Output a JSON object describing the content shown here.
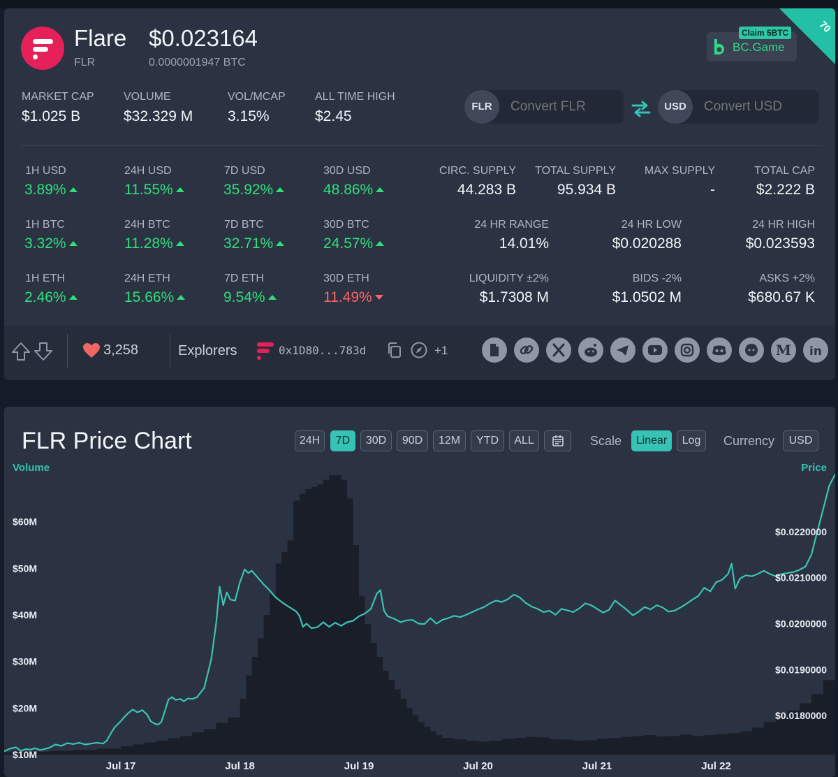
{
  "coin": {
    "name": "Flare",
    "ticker": "FLR",
    "price": "$0.023164",
    "price_btc": "0.0000001947 BTC"
  },
  "ad": {
    "claim": "Claim 5BTC",
    "brand": "BC.Game",
    "corner": "70"
  },
  "stats": [
    {
      "label": "MARKET CAP",
      "value": "$1.025 B"
    },
    {
      "label": "VOLUME",
      "value": "$32.329 M"
    },
    {
      "label": "VOL/MCAP",
      "value": "3.15%"
    },
    {
      "label": "ALL TIME HIGH",
      "value": "$2.45"
    }
  ],
  "converter": {
    "from_cur": "FLR",
    "from_placeholder": "Convert FLR",
    "to_cur": "USD",
    "to_placeholder": "Convert USD"
  },
  "changes": [
    {
      "label": "1H USD",
      "value": "3.89%",
      "dir": "up"
    },
    {
      "label": "24H USD",
      "value": "11.55%",
      "dir": "up"
    },
    {
      "label": "7D USD",
      "value": "35.92%",
      "dir": "up"
    },
    {
      "label": "30D USD",
      "value": "48.86%",
      "dir": "up"
    },
    {
      "label": "1H BTC",
      "value": "3.32%",
      "dir": "up"
    },
    {
      "label": "24H BTC",
      "value": "11.28%",
      "dir": "up"
    },
    {
      "label": "7D BTC",
      "value": "32.71%",
      "dir": "up"
    },
    {
      "label": "30D BTC",
      "value": "24.57%",
      "dir": "up"
    },
    {
      "label": "1H ETH",
      "value": "2.46%",
      "dir": "up"
    },
    {
      "label": "24H ETH",
      "value": "15.66%",
      "dir": "up"
    },
    {
      "label": "7D ETH",
      "value": "9.54%",
      "dir": "up"
    },
    {
      "label": "30D ETH",
      "value": "11.49%",
      "dir": "down"
    }
  ],
  "supply": [
    {
      "label": "CIRC. SUPPLY",
      "value": "44.283 B"
    },
    {
      "label": "TOTAL SUPPLY",
      "value": "95.934 B"
    },
    {
      "label": "MAX SUPPLY",
      "value": "-"
    },
    {
      "label": "TOTAL CAP",
      "value": "$2.222 B"
    }
  ],
  "range": [
    {
      "label": "24 HR RANGE",
      "value": "14.01%"
    },
    {
      "label": "24 HR LOW",
      "value": "$0.020288"
    },
    {
      "label": "24 HR HIGH",
      "value": "$0.023593"
    }
  ],
  "liquidity": [
    {
      "label": "LIQUIDITY ±2%",
      "value": "$1.7308 M"
    },
    {
      "label": "BIDS -2%",
      "value": "$1.0502 M"
    },
    {
      "label": "ASKS +2%",
      "value": "$680.67 K"
    }
  ],
  "toolbar": {
    "likes": "3,258",
    "explorers": "Explorers",
    "address": "0x1D80...783d",
    "more": "+1",
    "socials": [
      "document-icon",
      "link-icon",
      "x-icon",
      "reddit-icon",
      "telegram-icon",
      "youtube-icon",
      "instagram-icon",
      "discord-icon",
      "github-icon",
      "medium-icon",
      "linkedin-icon"
    ]
  },
  "chart_panel": {
    "title": "FLR Price Chart",
    "ranges": [
      "24H",
      "7D",
      "30D",
      "90D",
      "12M",
      "YTD",
      "ALL"
    ],
    "active_range": "7D",
    "scale_label": "Scale",
    "scales": [
      "Linear",
      "Log"
    ],
    "active_scale": "Linear",
    "currency_label": "Currency",
    "currency": "USD"
  },
  "colors": {
    "accent": "#36c2b4",
    "up": "#2fe07a",
    "down": "#ff6363",
    "card": "#2b3242",
    "logo": "#e62058"
  },
  "chart_data": {
    "type": "line",
    "title": "FLR Price Chart",
    "x_tick_labels": [
      "Jul 17",
      "Jul 18",
      "Jul 19",
      "Jul 20",
      "Jul 21",
      "Jul 22"
    ],
    "left_axis": {
      "title": "Volume",
      "ticks": [
        "$10M",
        "$20M",
        "$30M",
        "$40M",
        "$50M",
        "$60M"
      ],
      "ylim": [
        10,
        70
      ]
    },
    "right_axis": {
      "title": "Price",
      "ticks": [
        "$0.0180000",
        "$0.0190000",
        "$0.0200000",
        "$0.0210000",
        "$0.0220000"
      ],
      "ylim": [
        0.01715,
        0.02335
      ]
    },
    "x_range": [
      -0.98,
      6.0
    ],
    "price_series": [
      [
        -0.98,
        0.01722
      ],
      [
        -0.93,
        0.01728
      ],
      [
        -0.88,
        0.01731
      ],
      [
        -0.84,
        0.01723
      ],
      [
        -0.8,
        0.01727
      ],
      [
        -0.76,
        0.01726
      ],
      [
        -0.72,
        0.01729
      ],
      [
        -0.68,
        0.01725
      ],
      [
        -0.64,
        0.01727
      ],
      [
        -0.6,
        0.0173
      ],
      [
        -0.55,
        0.01737
      ],
      [
        -0.5,
        0.01734
      ],
      [
        -0.45,
        0.0174
      ],
      [
        -0.4,
        0.01738
      ],
      [
        -0.35,
        0.01741
      ],
      [
        -0.3,
        0.01737
      ],
      [
        -0.25,
        0.01739
      ],
      [
        -0.2,
        0.01741
      ],
      [
        -0.15,
        0.01739
      ],
      [
        -0.12,
        0.01745
      ],
      [
        -0.08,
        0.01763
      ],
      [
        -0.05,
        0.01775
      ],
      [
        0.0,
        0.01788
      ],
      [
        0.03,
        0.01797
      ],
      [
        0.06,
        0.01805
      ],
      [
        0.1,
        0.01813
      ],
      [
        0.14,
        0.01807
      ],
      [
        0.18,
        0.01812
      ],
      [
        0.22,
        0.01802
      ],
      [
        0.25,
        0.01788
      ],
      [
        0.28,
        0.01783
      ],
      [
        0.31,
        0.0178
      ],
      [
        0.34,
        0.01786
      ],
      [
        0.37,
        0.0181
      ],
      [
        0.4,
        0.01835
      ],
      [
        0.43,
        0.0184
      ],
      [
        0.46,
        0.01834
      ],
      [
        0.5,
        0.01836
      ],
      [
        0.53,
        0.01831
      ],
      [
        0.56,
        0.01837
      ],
      [
        0.6,
        0.01836
      ],
      [
        0.64,
        0.0184
      ],
      [
        0.7,
        0.0186
      ],
      [
        0.76,
        0.01923
      ],
      [
        0.8,
        0.02
      ],
      [
        0.83,
        0.0208
      ],
      [
        0.86,
        0.0204
      ],
      [
        0.89,
        0.02068
      ],
      [
        0.92,
        0.02052
      ],
      [
        0.96,
        0.0205
      ],
      [
        1.0,
        0.0209
      ],
      [
        1.04,
        0.02118
      ],
      [
        1.07,
        0.0211
      ],
      [
        1.1,
        0.02115
      ],
      [
        1.15,
        0.021
      ],
      [
        1.2,
        0.02085
      ],
      [
        1.25,
        0.02072
      ],
      [
        1.3,
        0.02057
      ],
      [
        1.36,
        0.02045
      ],
      [
        1.42,
        0.02035
      ],
      [
        1.47,
        0.02027
      ],
      [
        1.5,
        0.02017
      ],
      [
        1.53,
        0.01993
      ],
      [
        1.56,
        0.02
      ],
      [
        1.6,
        0.0199
      ],
      [
        1.65,
        0.01992
      ],
      [
        1.7,
        0.02003
      ],
      [
        1.75,
        0.01993
      ],
      [
        1.8,
        0.02002
      ],
      [
        1.85,
        0.01995
      ],
      [
        1.9,
        0.02003
      ],
      [
        1.95,
        0.02006
      ],
      [
        2.0,
        0.02016
      ],
      [
        2.05,
        0.02022
      ],
      [
        2.1,
        0.02032
      ],
      [
        2.15,
        0.02065
      ],
      [
        2.18,
        0.02073
      ],
      [
        2.21,
        0.02028
      ],
      [
        2.24,
        0.02016
      ],
      [
        2.3,
        0.0201
      ],
      [
        2.35,
        0.02003
      ],
      [
        2.4,
        0.02007
      ],
      [
        2.45,
        0.02008
      ],
      [
        2.5,
        0.02
      ],
      [
        2.55,
        0.01999
      ],
      [
        2.6,
        0.02012
      ],
      [
        2.65,
        0.02
      ],
      [
        2.7,
        0.02008
      ],
      [
        2.75,
        0.02012
      ],
      [
        2.8,
        0.02017
      ],
      [
        2.85,
        0.02014
      ],
      [
        2.9,
        0.02019
      ],
      [
        2.95,
        0.02025
      ],
      [
        3.0,
        0.02031
      ],
      [
        3.05,
        0.02036
      ],
      [
        3.1,
        0.02044
      ],
      [
        3.15,
        0.0205
      ],
      [
        3.2,
        0.02047
      ],
      [
        3.25,
        0.02053
      ],
      [
        3.3,
        0.02063
      ],
      [
        3.35,
        0.02057
      ],
      [
        3.4,
        0.02045
      ],
      [
        3.45,
        0.02037
      ],
      [
        3.5,
        0.02032
      ],
      [
        3.55,
        0.02025
      ],
      [
        3.6,
        0.02028
      ],
      [
        3.65,
        0.02019
      ],
      [
        3.7,
        0.02032
      ],
      [
        3.75,
        0.02029
      ],
      [
        3.8,
        0.02025
      ],
      [
        3.85,
        0.02033
      ],
      [
        3.9,
        0.02044
      ],
      [
        3.95,
        0.0204
      ],
      [
        4.0,
        0.02032
      ],
      [
        4.05,
        0.02024
      ],
      [
        4.1,
        0.0203
      ],
      [
        4.15,
        0.0205
      ],
      [
        4.2,
        0.0204
      ],
      [
        4.25,
        0.0203
      ],
      [
        4.3,
        0.02018
      ],
      [
        4.35,
        0.02026
      ],
      [
        4.4,
        0.02036
      ],
      [
        4.45,
        0.02031
      ],
      [
        4.5,
        0.0204
      ],
      [
        4.55,
        0.02035
      ],
      [
        4.6,
        0.02026
      ],
      [
        4.65,
        0.02028
      ],
      [
        4.7,
        0.02035
      ],
      [
        4.75,
        0.02043
      ],
      [
        4.8,
        0.02052
      ],
      [
        4.85,
        0.0206
      ],
      [
        4.9,
        0.02078
      ],
      [
        4.95,
        0.0207
      ],
      [
        5.0,
        0.0209
      ],
      [
        5.05,
        0.02095
      ],
      [
        5.1,
        0.02108
      ],
      [
        5.13,
        0.0213
      ],
      [
        5.16,
        0.02076
      ],
      [
        5.2,
        0.02098
      ],
      [
        5.25,
        0.02105
      ],
      [
        5.3,
        0.02103
      ],
      [
        5.35,
        0.02108
      ],
      [
        5.4,
        0.02115
      ],
      [
        5.45,
        0.02108
      ],
      [
        5.5,
        0.02103
      ],
      [
        5.55,
        0.02108
      ],
      [
        5.6,
        0.0211
      ],
      [
        5.65,
        0.02112
      ],
      [
        5.7,
        0.02117
      ],
      [
        5.75,
        0.02124
      ],
      [
        5.8,
        0.0215
      ],
      [
        5.85,
        0.022
      ],
      [
        5.9,
        0.0225
      ],
      [
        5.95,
        0.023
      ],
      [
        6.0,
        0.02325
      ]
    ],
    "volume_series": [
      [
        -0.98,
        10.5
      ],
      [
        -0.8,
        10.6
      ],
      [
        -0.6,
        10.8
      ],
      [
        -0.4,
        11.0
      ],
      [
        -0.2,
        11.3
      ],
      [
        0.0,
        11.8
      ],
      [
        0.1,
        12.2
      ],
      [
        0.2,
        12.6
      ],
      [
        0.3,
        13.0
      ],
      [
        0.4,
        13.5
      ],
      [
        0.5,
        14.0
      ],
      [
        0.6,
        14.8
      ],
      [
        0.7,
        15.5
      ],
      [
        0.8,
        16.8
      ],
      [
        0.9,
        18.0
      ],
      [
        1.0,
        22.0
      ],
      [
        1.05,
        27.0
      ],
      [
        1.1,
        31.0
      ],
      [
        1.15,
        35.0
      ],
      [
        1.2,
        40.0
      ],
      [
        1.25,
        44.5
      ],
      [
        1.3,
        51.0
      ],
      [
        1.35,
        53.5
      ],
      [
        1.4,
        56.0
      ],
      [
        1.45,
        64.5
      ],
      [
        1.5,
        66.0
      ],
      [
        1.55,
        67.0
      ],
      [
        1.6,
        67.5
      ],
      [
        1.65,
        68.0
      ],
      [
        1.7,
        69.0
      ],
      [
        1.75,
        70.0
      ],
      [
        1.8,
        70.0
      ],
      [
        1.85,
        69.0
      ],
      [
        1.9,
        65.0
      ],
      [
        1.95,
        55.0
      ],
      [
        2.0,
        44.0
      ],
      [
        2.05,
        38.0
      ],
      [
        2.1,
        34.0
      ],
      [
        2.15,
        31.0
      ],
      [
        2.2,
        28.0
      ],
      [
        2.25,
        26.0
      ],
      [
        2.3,
        24.0
      ],
      [
        2.35,
        22.0
      ],
      [
        2.4,
        20.0
      ],
      [
        2.45,
        18.5
      ],
      [
        2.5,
        17.0
      ],
      [
        2.55,
        16.0
      ],
      [
        2.6,
        15.0
      ],
      [
        2.65,
        14.2
      ],
      [
        2.7,
        13.6
      ],
      [
        2.8,
        13.3
      ],
      [
        2.9,
        13.0
      ],
      [
        3.0,
        12.8
      ],
      [
        3.1,
        13.0
      ],
      [
        3.2,
        13.4
      ],
      [
        3.3,
        13.6
      ],
      [
        3.4,
        13.8
      ],
      [
        3.5,
        13.7
      ],
      [
        3.6,
        13.3
      ],
      [
        3.7,
        13.2
      ],
      [
        3.8,
        13.0
      ],
      [
        3.9,
        13.1
      ],
      [
        4.0,
        13.4
      ],
      [
        4.1,
        13.6
      ],
      [
        4.2,
        13.8
      ],
      [
        4.3,
        14.0
      ],
      [
        4.4,
        14.2
      ],
      [
        4.5,
        13.9
      ],
      [
        4.6,
        14.0
      ],
      [
        4.7,
        14.3
      ],
      [
        4.8,
        14.0
      ],
      [
        4.9,
        14.2
      ],
      [
        5.0,
        14.4
      ],
      [
        5.1,
        14.6
      ],
      [
        5.2,
        15.0
      ],
      [
        5.3,
        15.8
      ],
      [
        5.4,
        17.0
      ],
      [
        5.5,
        18.0
      ],
      [
        5.6,
        19.5
      ],
      [
        5.7,
        21.0
      ],
      [
        5.8,
        23.0
      ],
      [
        5.9,
        26.0
      ],
      [
        6.0,
        33.0
      ]
    ]
  }
}
